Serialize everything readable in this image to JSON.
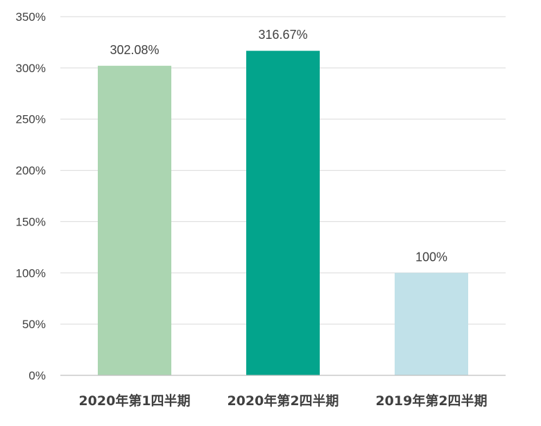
{
  "chart_data": {
    "type": "bar",
    "title": "",
    "xlabel": "",
    "ylabel": "",
    "categories": [
      "2020年第1四半期",
      "2020年第2四半期",
      "2019年第2四半期"
    ],
    "values": [
      302.08,
      316.67,
      100
    ],
    "value_labels": [
      "302.08%",
      "316.67%",
      "100%"
    ],
    "bar_colors": [
      "#abd5b1",
      "#03a48c",
      "#c1e1e9"
    ],
    "ylim": [
      0,
      350
    ],
    "yticks": [
      0,
      50,
      100,
      150,
      200,
      250,
      300,
      350
    ],
    "ytick_labels": [
      "0%",
      "50%",
      "100%",
      "150%",
      "200%",
      "250%",
      "300%",
      "350%"
    ],
    "grid": true,
    "legend": "none"
  }
}
